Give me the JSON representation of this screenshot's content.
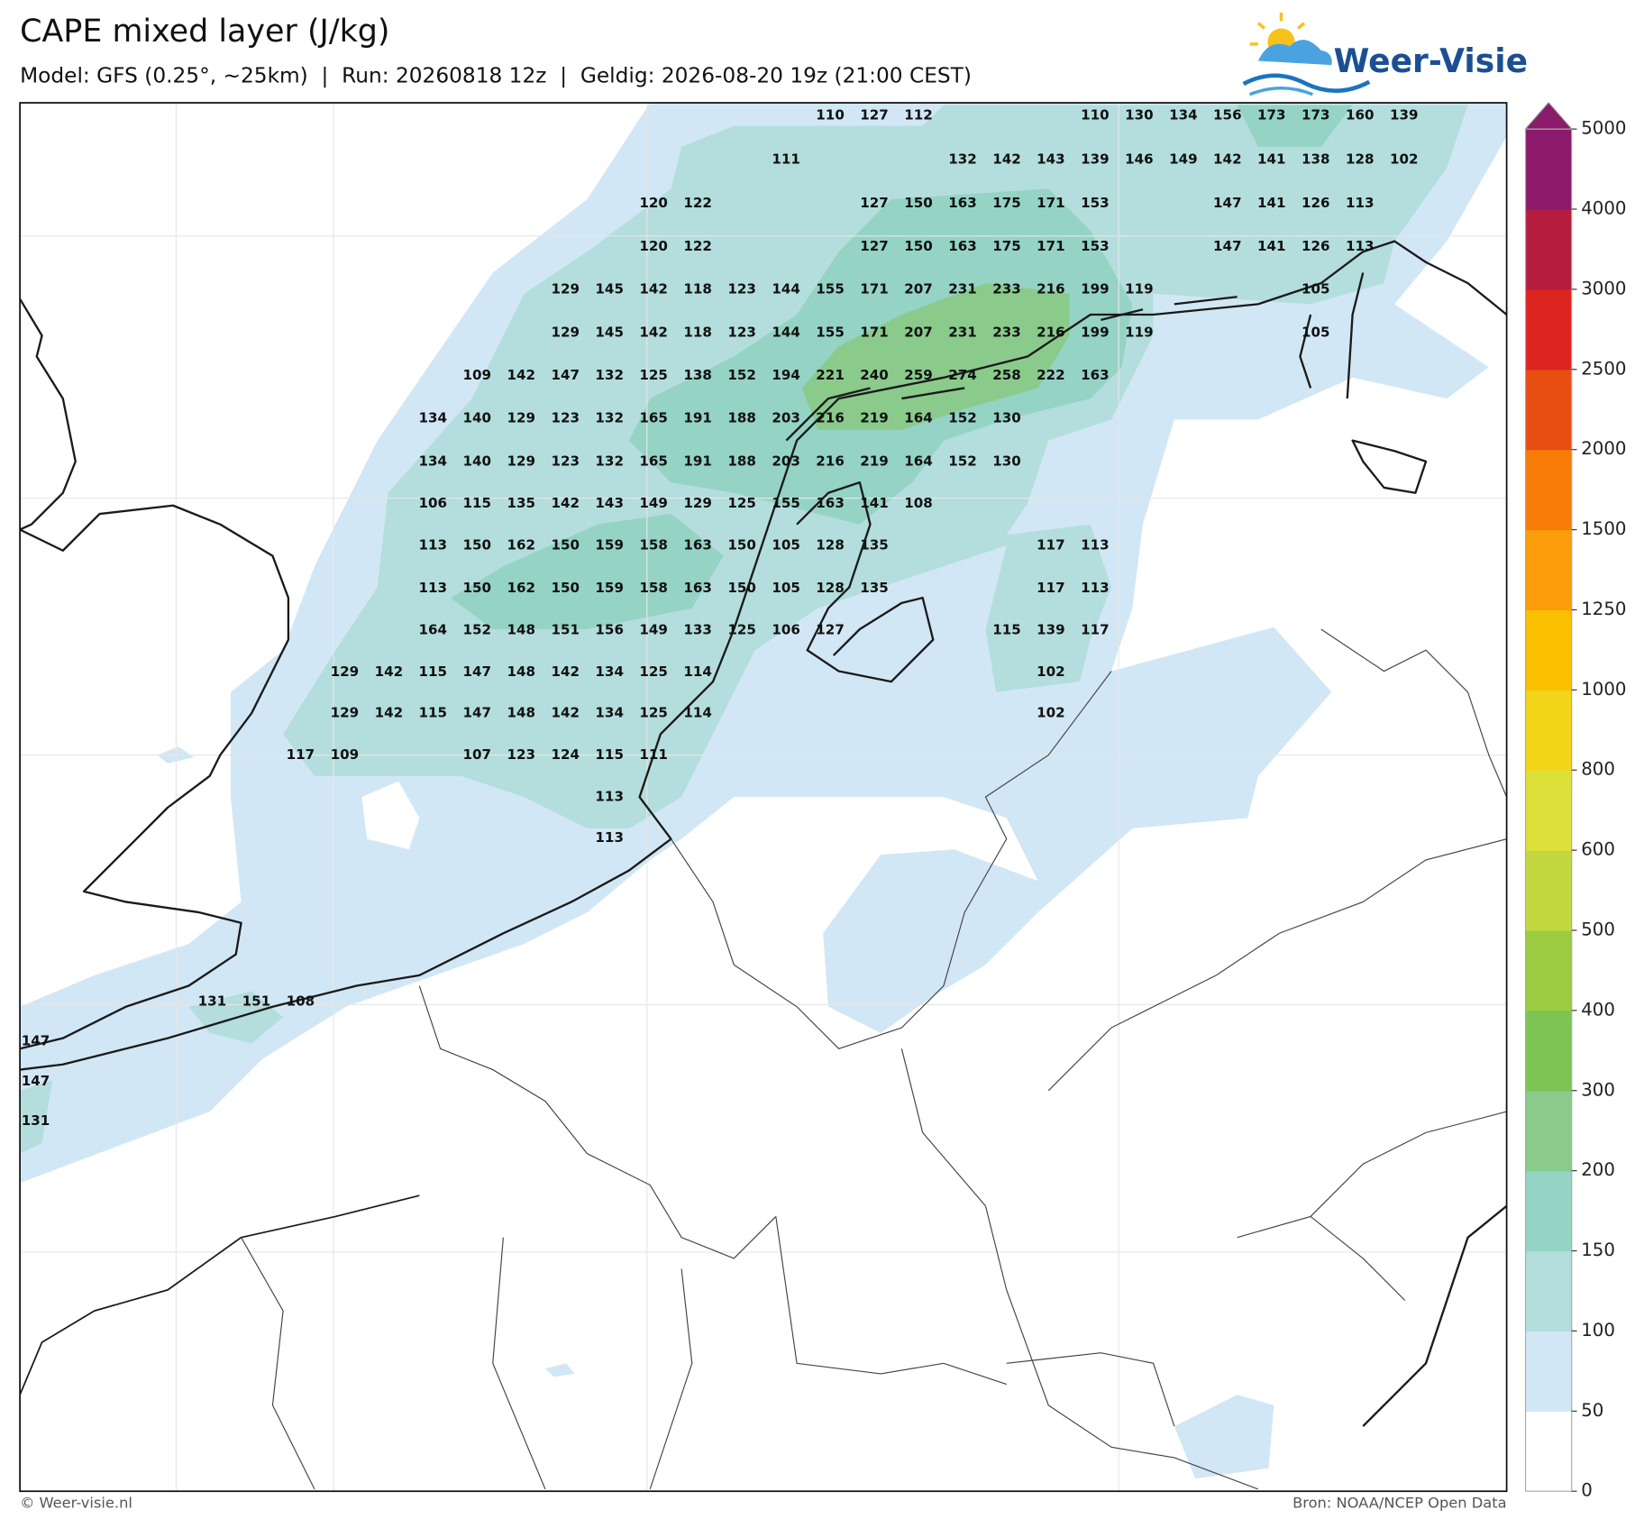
{
  "header": {
    "title": "CAPE mixed layer (J/kg)",
    "subtitle": "Model: GFS (0.25°, ~25km)  |  Run: 20260818 12z  |  Geldig: 2026-08-20 19z (21:00 CEST)"
  },
  "logo": {
    "name": "Weer-Visie"
  },
  "map": {
    "labels": [
      [
        null,
        null,
        null,
        null,
        null,
        null,
        null,
        null,
        null,
        null,
        null,
        null,
        null,
        null,
        null,
        null,
        null,
        null,
        110,
        127,
        112,
        null,
        null,
        null,
        110,
        130,
        134,
        156,
        173,
        173,
        160,
        139
      ],
      [
        null,
        null,
        null,
        null,
        null,
        null,
        null,
        null,
        null,
        null,
        null,
        null,
        null,
        null,
        null,
        null,
        null,
        111,
        null,
        null,
        null,
        132,
        142,
        143,
        139,
        146,
        149,
        142,
        141,
        138,
        128,
        102
      ],
      [
        null,
        null,
        null,
        null,
        null,
        null,
        null,
        null,
        null,
        null,
        null,
        null,
        null,
        null,
        120,
        122,
        null,
        null,
        null,
        127,
        150,
        163,
        175,
        171,
        153,
        null,
        null,
        147,
        141,
        126,
        113
      ],
      [
        null,
        null,
        null,
        null,
        null,
        null,
        null,
        null,
        null,
        null,
        null,
        null,
        null,
        null,
        120,
        122,
        null,
        null,
        null,
        127,
        150,
        163,
        175,
        171,
        153,
        null,
        null,
        147,
        141,
        126,
        113
      ],
      [
        null,
        null,
        null,
        null,
        null,
        null,
        null,
        null,
        null,
        null,
        null,
        null,
        129,
        145,
        142,
        118,
        123,
        144,
        155,
        171,
        207,
        231,
        233,
        216,
        199,
        119,
        null,
        null,
        null,
        105
      ],
      [
        null,
        null,
        null,
        null,
        null,
        null,
        null,
        null,
        null,
        null,
        null,
        null,
        129,
        145,
        142,
        118,
        123,
        144,
        155,
        171,
        207,
        231,
        233,
        216,
        199,
        119,
        null,
        null,
        null,
        105
      ],
      [
        null,
        null,
        null,
        null,
        null,
        null,
        null,
        null,
        null,
        null,
        109,
        142,
        147,
        132,
        125,
        138,
        152,
        194,
        221,
        240,
        259,
        274,
        258,
        222,
        163
      ],
      [
        null,
        null,
        null,
        null,
        null,
        null,
        null,
        null,
        null,
        134,
        140,
        129,
        123,
        132,
        165,
        191,
        188,
        203,
        216,
        219,
        164,
        152,
        130
      ],
      [
        null,
        null,
        null,
        null,
        null,
        null,
        null,
        null,
        null,
        134,
        140,
        129,
        123,
        132,
        165,
        191,
        188,
        203,
        216,
        219,
        164,
        152,
        130
      ],
      [
        null,
        null,
        null,
        null,
        null,
        null,
        null,
        null,
        null,
        106,
        115,
        135,
        142,
        143,
        149,
        129,
        125,
        155,
        163,
        141,
        108
      ],
      [
        null,
        null,
        null,
        null,
        null,
        null,
        null,
        null,
        null,
        113,
        150,
        162,
        150,
        159,
        158,
        163,
        150,
        105,
        128,
        135,
        null,
        null,
        null,
        117,
        113
      ],
      [
        null,
        null,
        null,
        null,
        null,
        null,
        null,
        null,
        null,
        113,
        150,
        162,
        150,
        159,
        158,
        163,
        150,
        105,
        128,
        135,
        null,
        null,
        null,
        117,
        113
      ],
      [
        null,
        null,
        null,
        null,
        null,
        null,
        null,
        null,
        null,
        164,
        152,
        148,
        151,
        156,
        149,
        133,
        125,
        106,
        127,
        null,
        null,
        null,
        115,
        139,
        117
      ],
      [
        null,
        null,
        null,
        null,
        null,
        null,
        null,
        129,
        142,
        115,
        147,
        148,
        142,
        134,
        125,
        114,
        null,
        null,
        null,
        null,
        null,
        null,
        null,
        102
      ],
      [
        null,
        null,
        null,
        null,
        null,
        null,
        null,
        129,
        142,
        115,
        147,
        148,
        142,
        134,
        125,
        114,
        null,
        null,
        null,
        null,
        null,
        null,
        null,
        102
      ],
      [
        null,
        null,
        null,
        null,
        null,
        null,
        117,
        109,
        null,
        null,
        107,
        123,
        124,
        115,
        111
      ],
      [
        null,
        null,
        null,
        null,
        null,
        null,
        null,
        null,
        null,
        null,
        null,
        null,
        null,
        113
      ],
      [
        null,
        null,
        null,
        null,
        null,
        null,
        null,
        null,
        null,
        null,
        null,
        null,
        null,
        113
      ],
      [
        null,
        null,
        null,
        null,
        131,
        151,
        108
      ],
      [
        147
      ],
      [
        147
      ],
      [
        131
      ]
    ]
  },
  "colorbar": {
    "ticks": [
      0,
      50,
      100,
      150,
      200,
      300,
      400,
      500,
      600,
      800,
      1000,
      1250,
      1500,
      2000,
      2500,
      3000,
      4000,
      5000
    ],
    "colors": [
      "#ffffff",
      "#d2e7f5",
      "#b3dedd",
      "#95d3c5",
      "#8acb8c",
      "#7cc453",
      "#9bcb40",
      "#c3d83f",
      "#dee03a",
      "#f2d418",
      "#fbc000",
      "#fb9d0a",
      "#f67c07",
      "#e84e12",
      "#dc2420",
      "#b51d3e",
      "#8b1a6b"
    ]
  },
  "footer": {
    "left": "© Weer-visie.nl",
    "right": "Bron: NOAA/NCEP Open Data"
  }
}
